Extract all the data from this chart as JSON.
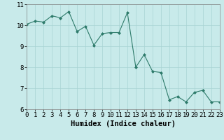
{
  "x": [
    0,
    1,
    2,
    3,
    4,
    5,
    6,
    7,
    8,
    9,
    10,
    11,
    12,
    13,
    14,
    15,
    16,
    17,
    18,
    19,
    20,
    21,
    22,
    23
  ],
  "y": [
    10.05,
    10.2,
    10.15,
    10.45,
    10.35,
    10.65,
    9.7,
    9.95,
    9.05,
    9.6,
    9.65,
    9.65,
    10.6,
    8.0,
    8.6,
    7.8,
    7.75,
    6.45,
    6.6,
    6.35,
    6.8,
    6.9,
    6.35,
    6.35
  ],
  "line_color": "#2d7a6a",
  "marker": "D",
  "marker_size": 2.0,
  "bg_color": "#c8eaea",
  "grid_color": "#a8d4d4",
  "xlabel": "Humidex (Indice chaleur)",
  "ylim": [
    6,
    11
  ],
  "xlim": [
    0,
    23
  ],
  "yticks": [
    6,
    7,
    8,
    9,
    10,
    11
  ],
  "xticks": [
    0,
    1,
    2,
    3,
    4,
    5,
    6,
    7,
    8,
    9,
    10,
    11,
    12,
    13,
    14,
    15,
    16,
    17,
    18,
    19,
    20,
    21,
    22,
    23
  ],
  "tick_fontsize": 6.5,
  "xlabel_fontsize": 7.5,
  "spine_color": "#888888",
  "line_width": 0.8
}
